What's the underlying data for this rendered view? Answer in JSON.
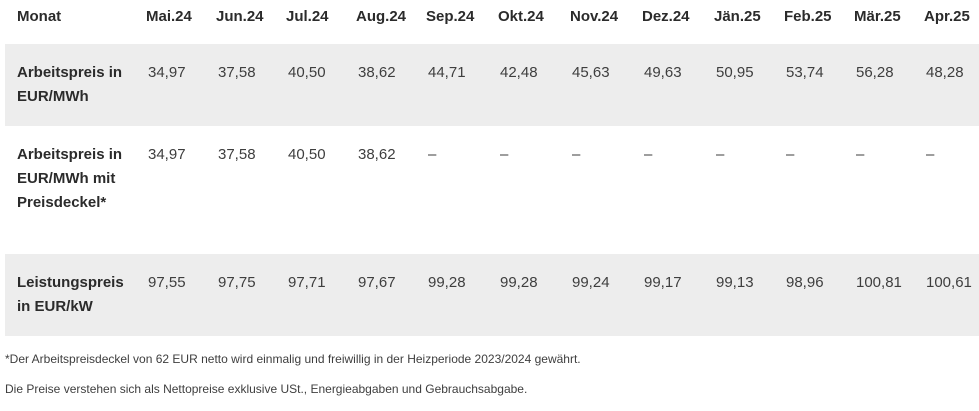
{
  "table": {
    "header_label": "Monat",
    "months": [
      "Mai.24",
      "Jun.24",
      "Jul.24",
      "Aug.24",
      "Sep.24",
      "Okt.24",
      "Nov.24",
      "Dez.24",
      "Jän.25",
      "Feb.25",
      "Mär.25",
      "Apr.25"
    ],
    "rows": [
      {
        "label": "Arbeitspreis in EUR/MWh",
        "values": [
          "34,97",
          "37,58",
          "40,50",
          "38,62",
          "44,71",
          "42,48",
          "45,63",
          "49,63",
          "50,95",
          "53,74",
          "56,28",
          "48,28"
        ]
      },
      {
        "label": "Arbeitspreis in EUR/MWh mit Preisdeckel*",
        "values": [
          "34,97",
          "37,58",
          "40,50",
          "38,62",
          "–",
          "–",
          "–",
          "–",
          "–",
          "–",
          "–",
          "–"
        ]
      },
      {
        "label": "Leistungspreis in EUR/kW",
        "values": [
          "97,55",
          "97,75",
          "97,71",
          "97,67",
          "99,28",
          "99,28",
          "99,24",
          "99,17",
          "99,13",
          "98,96",
          "100,81",
          "100,61"
        ]
      }
    ]
  },
  "footnotes": {
    "price_cap_note": "*Der Arbeitspreisdeckel von 62 EUR netto wird einmalig und freiwillig in der Heizperiode 2023/2024 gewährt.",
    "net_price_note": "Die Preise verstehen sich als Nettopreise exklusive USt., Energieabgaben und Gebrauchsabgabe."
  }
}
